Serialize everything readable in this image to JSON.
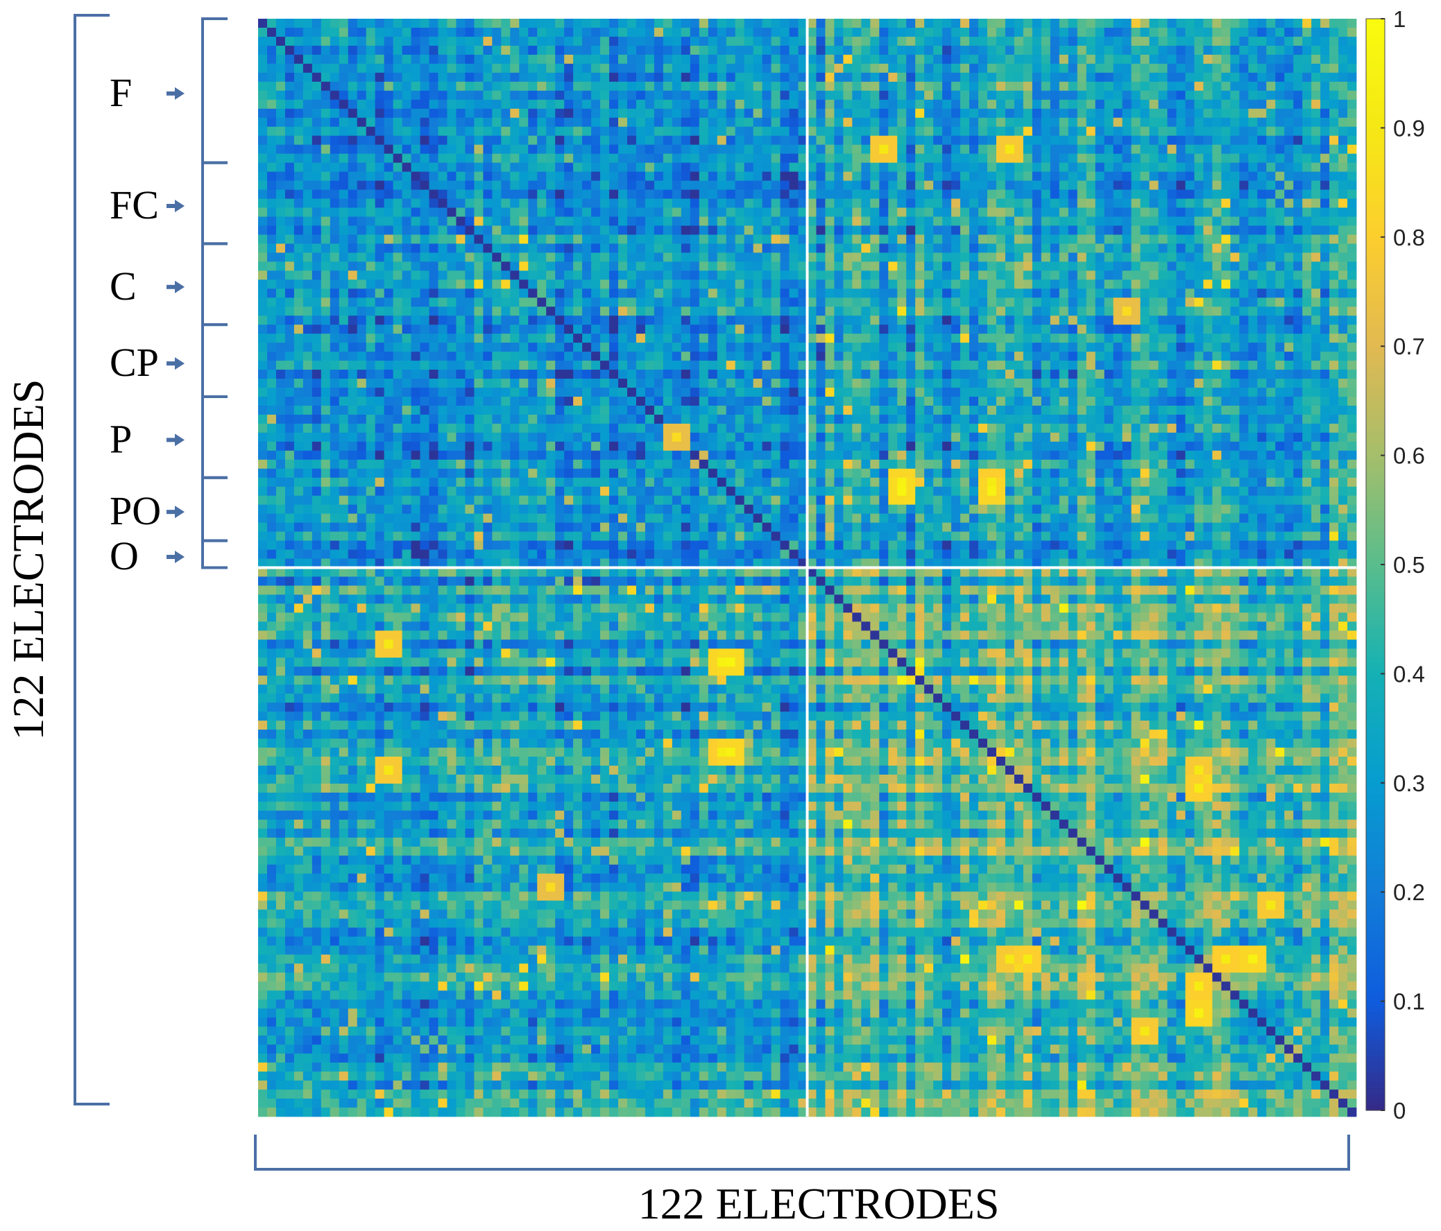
{
  "chart_data": {
    "type": "heatmap",
    "title": "",
    "xlabel": "122 ELECTRODES",
    "ylabel": "122 ELECTRODES",
    "n_electrodes": 122,
    "half_split_index": 61,
    "value_range": [
      0,
      1
    ],
    "colormap": "parula",
    "colorbar": {
      "ticks": [
        0,
        0.1,
        0.2,
        0.3,
        0.4,
        0.5,
        0.6,
        0.7,
        0.8,
        0.9,
        1
      ],
      "tick_labels": [
        "0",
        "0.1",
        "0.2",
        "0.3",
        "0.4",
        "0.5",
        "0.6",
        "0.7",
        "0.8",
        "0.9",
        "1"
      ],
      "placement": "right"
    },
    "region_groups": [
      {
        "label": "F",
        "start": 0,
        "end": 16
      },
      {
        "label": "FC",
        "start": 16,
        "end": 25
      },
      {
        "label": "C",
        "start": 25,
        "end": 34
      },
      {
        "label": "CP",
        "start": 34,
        "end": 42
      },
      {
        "label": "P",
        "start": 42,
        "end": 51
      },
      {
        "label": "PO",
        "start": 51,
        "end": 58
      },
      {
        "label": "O",
        "start": 58,
        "end": 61
      }
    ],
    "hot_spots": [
      {
        "row": 51,
        "col": 71,
        "value": 0.95
      },
      {
        "row": 51,
        "col": 81,
        "value": 0.92
      },
      {
        "row": 71,
        "col": 52,
        "value": 0.97
      },
      {
        "row": 81,
        "col": 52,
        "value": 0.95
      },
      {
        "row": 46,
        "col": 46,
        "value": 0.85
      },
      {
        "row": 32,
        "col": 96,
        "value": 0.85
      },
      {
        "row": 14,
        "col": 69,
        "value": 0.9
      },
      {
        "row": 14,
        "col": 83,
        "value": 0.9
      },
      {
        "row": 104,
        "col": 85,
        "value": 0.92
      },
      {
        "row": 104,
        "col": 107,
        "value": 0.92
      },
      {
        "row": 83,
        "col": 104,
        "value": 0.9
      },
      {
        "row": 110,
        "col": 104,
        "value": 0.95
      },
      {
        "row": 98,
        "col": 112,
        "value": 0.9
      }
    ]
  },
  "colors": {
    "separator": "#ffffff",
    "bracket": "#4a6fa5",
    "arrow": "#4a6fa5"
  }
}
